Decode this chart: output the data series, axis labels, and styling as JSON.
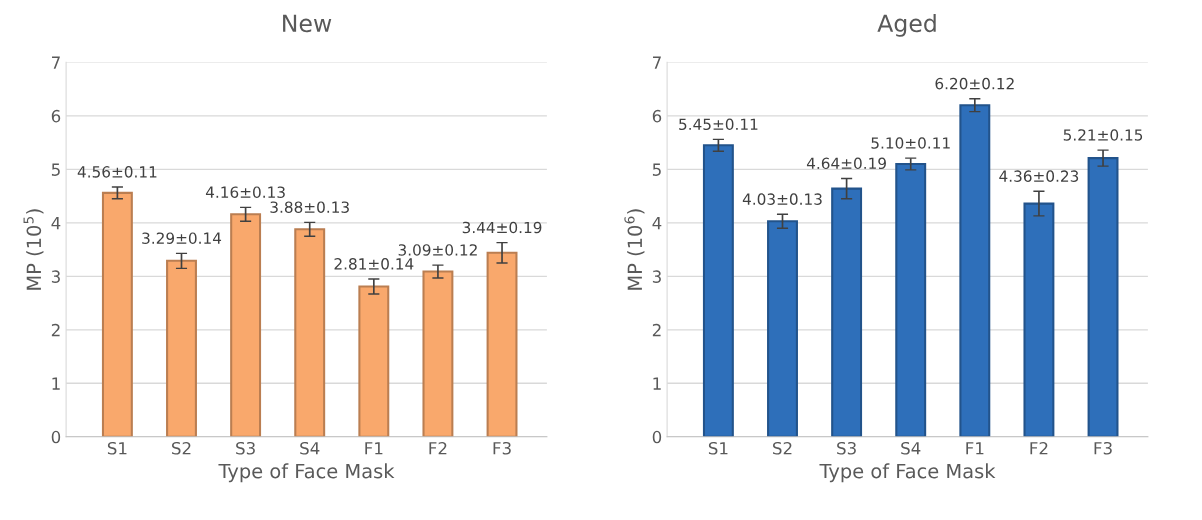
{
  "chart_data": [
    {
      "type": "bar",
      "title": "New",
      "xlabel": "Type of Face Mask",
      "ylabel": "MP (10$^{5}$)",
      "categories": [
        "S1",
        "S2",
        "S3",
        "S4",
        "F1",
        "F2",
        "F3"
      ],
      "values": [
        4.56,
        3.29,
        4.16,
        3.88,
        2.81,
        3.09,
        3.44
      ],
      "color": "#f9a86c",
      "errors": [
        0.11,
        0.14,
        0.13,
        0.13,
        0.14,
        0.12,
        0.19
      ],
      "value_labels": [
        "4.56±0.11",
        "3.29±0.14",
        "4.16±0.13",
        "3.88±0.13",
        "2.81±0.14",
        "3.09±0.12",
        "3.44±0.19"
      ],
      "ylim": [
        0,
        7
      ],
      "yticks": [
        0,
        1,
        2,
        3,
        4,
        5,
        6,
        7
      ],
      "grid": "y"
    },
    {
      "type": "bar",
      "title": "Aged",
      "xlabel": "Type of Face Mask",
      "ylabel": "MP (10$^{6}$)",
      "categories": [
        "S1",
        "S2",
        "S3",
        "S4",
        "F1",
        "F2",
        "F3"
      ],
      "values": [
        5.45,
        4.03,
        4.64,
        5.1,
        6.2,
        4.36,
        5.21
      ],
      "color": "#2e6fba",
      "errors": [
        0.11,
        0.13,
        0.19,
        0.11,
        0.12,
        0.23,
        0.15
      ],
      "value_labels": [
        "5.45±0.11",
        "4.03±0.13",
        "4.64±0.19",
        "5.10±0.11",
        "6.20±0.12",
        "4.36±0.23",
        "5.21±0.15"
      ],
      "ylim": [
        0,
        7
      ],
      "yticks": [
        0,
        1,
        2,
        3,
        4,
        5,
        6,
        7
      ],
      "grid": "y"
    }
  ]
}
